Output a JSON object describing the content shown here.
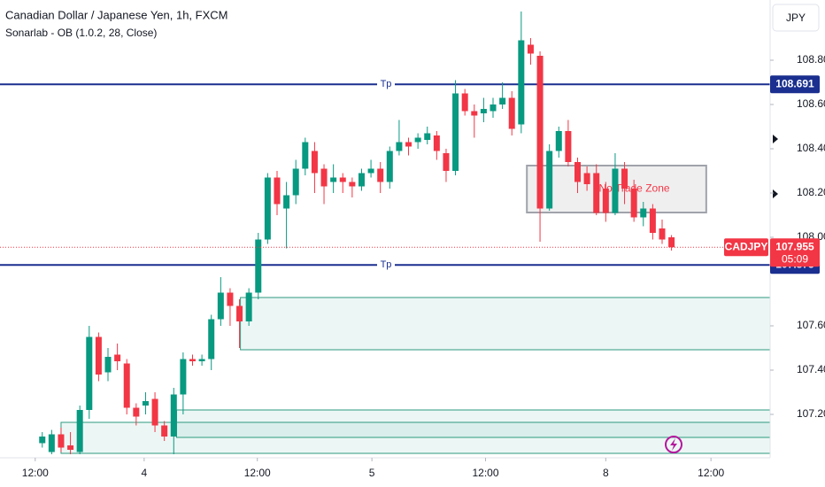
{
  "chart_data": {
    "type": "candlestick",
    "title": "Canadian Dollar / Japanese Yen, 1h, FXCM",
    "subtitle": "Sonarlab - OB (1.0.2, 28, Close)",
    "currency_button": "JPY",
    "up_color": "#089981",
    "down_color": "#f23645",
    "open": [
      107.07,
      107.03,
      107.11,
      107.06,
      107.03,
      107.22,
      107.55,
      107.39,
      107.47,
      107.43,
      107.23,
      107.24,
      107.27,
      107.15,
      107.1,
      107.29,
      107.45,
      107.44,
      107.45,
      107.63,
      107.75,
      107.69,
      107.62,
      107.75,
      107.99,
      108.27,
      108.13,
      108.19,
      108.31,
      108.39,
      108.31,
      108.25,
      108.27,
      108.25,
      108.23,
      108.29,
      108.31,
      108.25,
      108.39,
      108.43,
      108.43,
      108.44,
      108.46,
      108.38,
      108.3,
      108.65,
      108.57,
      108.56,
      108.57,
      108.6,
      108.63,
      108.51,
      108.87,
      108.82,
      108.13,
      108.39,
      108.48,
      108.34,
      108.29,
      108.29,
      108.22,
      108.11,
      108.31,
      108.22,
      108.09,
      108.13,
      108.04,
      108.0
    ],
    "high": [
      107.12,
      107.13,
      107.14,
      107.12,
      107.24,
      107.6,
      107.57,
      107.5,
      107.52,
      107.45,
      107.25,
      107.3,
      107.3,
      107.17,
      107.32,
      107.48,
      107.47,
      107.47,
      107.65,
      107.82,
      107.77,
      107.72,
      107.77,
      108.02,
      108.29,
      108.3,
      108.25,
      108.35,
      108.45,
      108.43,
      108.33,
      108.33,
      108.29,
      108.27,
      108.31,
      108.35,
      108.34,
      108.41,
      108.53,
      108.45,
      108.47,
      108.5,
      108.48,
      108.4,
      108.71,
      108.67,
      108.6,
      108.63,
      108.63,
      108.7,
      108.66,
      109.02,
      108.9,
      108.84,
      108.42,
      108.5,
      108.53,
      108.36,
      108.32,
      108.33,
      108.25,
      108.38,
      108.34,
      108.26,
      108.16,
      108.15,
      108.08,
      108.01
    ],
    "low": [
      107.05,
      107.02,
      107.03,
      107.02,
      107.02,
      107.18,
      107.35,
      107.35,
      107.4,
      107.2,
      107.15,
      107.2,
      107.12,
      107.08,
      107.02,
      107.2,
      107.42,
      107.42,
      107.4,
      107.6,
      107.6,
      107.5,
      107.6,
      107.72,
      107.97,
      108.1,
      107.95,
      108.15,
      108.28,
      108.2,
      108.15,
      108.2,
      108.2,
      108.18,
      108.21,
      108.27,
      108.2,
      108.22,
      108.37,
      108.37,
      108.4,
      108.42,
      108.35,
      108.25,
      108.28,
      108.55,
      108.45,
      108.52,
      108.54,
      108.58,
      108.46,
      108.47,
      108.78,
      107.98,
      108.12,
      108.36,
      108.32,
      108.2,
      108.21,
      108.1,
      108.07,
      108.1,
      108.15,
      108.07,
      108.05,
      107.99,
      107.97,
      107.94
    ],
    "close": [
      107.1,
      107.11,
      107.05,
      107.04,
      107.22,
      107.55,
      107.38,
      107.46,
      107.44,
      107.23,
      107.19,
      107.26,
      107.15,
      107.1,
      107.29,
      107.45,
      107.44,
      107.45,
      107.63,
      107.75,
      107.69,
      107.62,
      107.75,
      107.99,
      108.27,
      108.15,
      108.19,
      108.31,
      108.43,
      108.29,
      108.23,
      108.27,
      108.25,
      108.23,
      108.29,
      108.31,
      108.25,
      108.39,
      108.43,
      108.41,
      108.45,
      108.47,
      108.39,
      108.3,
      108.65,
      108.57,
      108.55,
      108.58,
      108.6,
      108.63,
      108.49,
      108.89,
      108.83,
      108.13,
      108.39,
      108.48,
      108.34,
      108.25,
      108.24,
      108.11,
      108.11,
      108.31,
      108.22,
      108.09,
      108.13,
      108.02,
      107.99,
      107.955
    ],
    "ylim": [
      107.004,
      109.072
    ],
    "yticks": [
      {
        "value": 107.2,
        "label": "107.200"
      },
      {
        "value": 107.4,
        "label": "107.400"
      },
      {
        "value": 107.6,
        "label": "107.600"
      },
      {
        "value": 108.0,
        "label": "108.000"
      },
      {
        "value": 108.2,
        "label": "108.200"
      },
      {
        "value": 108.4,
        "label": "108.400"
      },
      {
        "value": 108.6,
        "label": "108.600"
      },
      {
        "value": 108.8,
        "label": "108.800"
      }
    ],
    "xlim": [
      -4.5,
      77.5
    ],
    "xticks": [
      {
        "value": -0.75,
        "label": "12:00"
      },
      {
        "value": 10.85,
        "label": "4"
      },
      {
        "value": 22.9,
        "label": "12:00"
      },
      {
        "value": 35.1,
        "label": "5"
      },
      {
        "value": 47.2,
        "label": "12:00"
      },
      {
        "value": 60,
        "label": "8"
      },
      {
        "value": 71.2,
        "label": "12:00"
      }
    ],
    "levels": [
      {
        "label": "Tp",
        "value": 108.691,
        "color": "#1a2f8f"
      },
      {
        "label": "Tp",
        "value": 107.875,
        "color": "#1a2f8f"
      }
    ],
    "order_blocks": [
      {
        "x_start": 21.1,
        "top": 107.728,
        "bottom": 107.492
      },
      {
        "x_start": 14.3,
        "top": 107.22,
        "bottom": 107.096
      },
      {
        "x_start": 2,
        "top": 107.164,
        "bottom": 107.024
      }
    ],
    "zone_annotation": {
      "text": "No Trade Zone",
      "x": [
        51.6,
        70.7
      ],
      "top": 108.324,
      "bottom": 108.112
    },
    "last_price": {
      "symbol": "CADJPY",
      "value": 107.955,
      "countdown": "05:09",
      "color": "#f23645"
    }
  }
}
